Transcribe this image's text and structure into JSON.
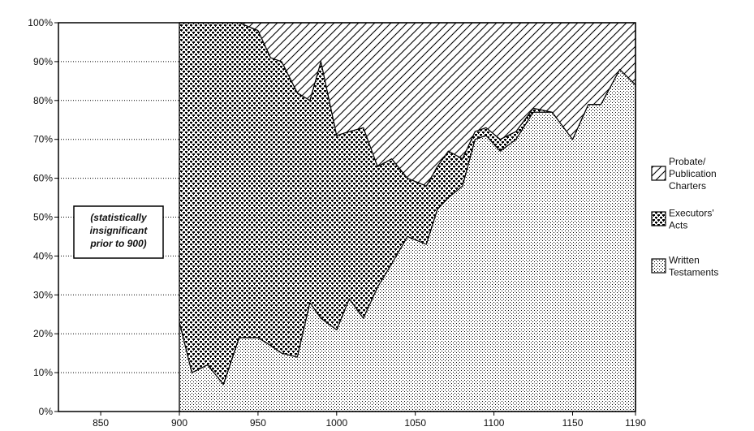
{
  "chart_data": {
    "type": "area",
    "stacked": true,
    "percent": true,
    "x": [
      900,
      908,
      918,
      928,
      938,
      950,
      958,
      965,
      975,
      983,
      990,
      1000,
      1008,
      1017,
      1026,
      1035,
      1045,
      1057,
      1064,
      1071,
      1080,
      1088,
      1095,
      1104,
      1114,
      1125,
      1137,
      1150,
      1160,
      1168,
      1180,
      1190
    ],
    "series": [
      {
        "name": "Written Testaments",
        "pattern": "dots-fine",
        "values": [
          23,
          10,
          12,
          7,
          19,
          19,
          17,
          15,
          14,
          28,
          24,
          21,
          29,
          24,
          32,
          38,
          45,
          43,
          52,
          55,
          58,
          70,
          71,
          67,
          70,
          77,
          77,
          70,
          79,
          79,
          88,
          84
        ]
      },
      {
        "name": "Executors' Acts",
        "pattern": "dots-coarse",
        "values": [
          77,
          90,
          88,
          93,
          81,
          79,
          74,
          75,
          68,
          52,
          66,
          50,
          43,
          49,
          31,
          27,
          15,
          15,
          11,
          12,
          7,
          2,
          2,
          3,
          2,
          1,
          0,
          0,
          0,
          0,
          0,
          0
        ]
      },
      {
        "name": "Probate/ Publication Charters",
        "pattern": "hatch",
        "values": [
          0,
          0,
          0,
          0,
          0,
          2,
          9,
          10,
          18,
          20,
          10,
          29,
          28,
          27,
          37,
          35,
          40,
          42,
          37,
          33,
          35,
          28,
          27,
          30,
          28,
          22,
          23,
          30,
          21,
          21,
          12,
          16
        ]
      }
    ],
    "legend_order": [
      "Probate/ Publication Charters",
      "Executors' Acts",
      "Written Testaments"
    ],
    "legend_lines": [
      [
        "Probate/",
        "Publication",
        "Charters"
      ],
      [
        "Executors'",
        "Acts"
      ],
      [
        "Written",
        "Testaments"
      ]
    ],
    "legend_position": "right",
    "x_ticks": [
      850,
      900,
      950,
      1000,
      1050,
      1100,
      1150,
      1190
    ],
    "xlim": [
      810,
      1190
    ],
    "y_ticks": [
      "0%",
      "10%",
      "20%",
      "30%",
      "40%",
      "50%",
      "60%",
      "70%",
      "80%",
      "90%",
      "100%"
    ],
    "ylim": [
      0,
      100
    ],
    "grid": "horizontal dotted",
    "annotation": [
      "(statistically",
      "insignificant",
      "prior to 900)"
    ],
    "xlabel": "",
    "ylabel": "",
    "title": ""
  }
}
